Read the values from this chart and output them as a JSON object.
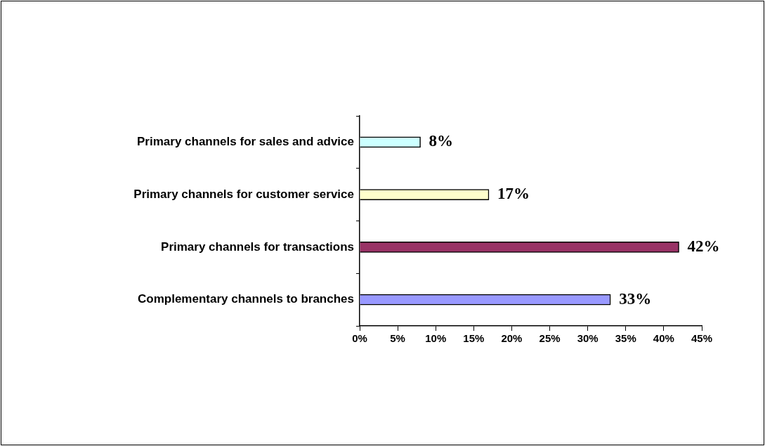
{
  "chart_data": {
    "type": "bar",
    "orientation": "horizontal",
    "categories": [
      "Primary channels for sales and advice",
      "Primary channels for customer service",
      "Primary channels for transactions",
      "Complementary channels to branches"
    ],
    "values": [
      8,
      17,
      42,
      33
    ],
    "colors": [
      "#ccffff",
      "#ffffcc",
      "#993366",
      "#9999ff"
    ],
    "xlim": [
      0,
      45
    ],
    "xticks": [
      {
        "value": 0,
        "label": "0%"
      },
      {
        "value": 5,
        "label": "5%"
      },
      {
        "value": 10,
        "label": "10%"
      },
      {
        "value": 15,
        "label": "15%"
      },
      {
        "value": 20,
        "label": "20%"
      },
      {
        "value": 25,
        "label": "25%"
      },
      {
        "value": 30,
        "label": "30%"
      },
      {
        "value": 35,
        "label": "35%"
      },
      {
        "value": 40,
        "label": "40%"
      },
      {
        "value": 45,
        "label": "45%"
      }
    ],
    "value_labels": [
      "8%",
      "17%",
      "42%",
      "33%"
    ],
    "grid": false,
    "legend": false
  }
}
